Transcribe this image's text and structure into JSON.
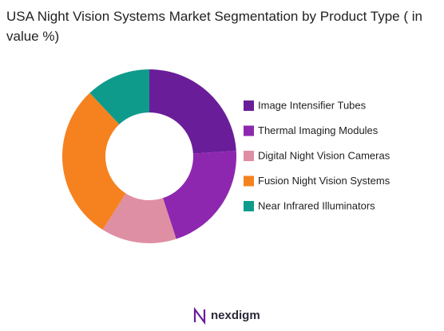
{
  "chart_data": {
    "type": "donut",
    "title": "USA Night Vision Systems Market Segmentation by Product Type ( in value %)",
    "categories": [
      "Image Intensifier Tubes",
      "Thermal Imaging Modules",
      "Digital Night Vision Cameras",
      "Fusion Night Vision Systems",
      "Near Infrared Illuminators"
    ],
    "values": [
      24,
      21,
      14,
      29,
      12
    ],
    "colors": [
      "#6a1d99",
      "#8e27b0",
      "#df8fa3",
      "#f5821f",
      "#0e9b8b"
    ],
    "legend": "right",
    "brand": "nexdigm"
  }
}
